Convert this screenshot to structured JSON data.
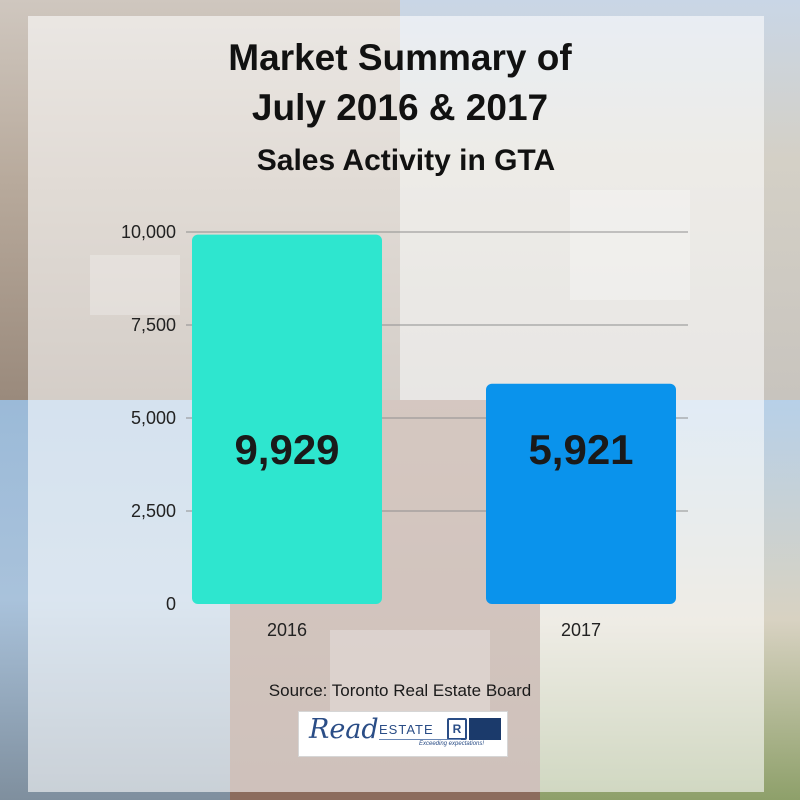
{
  "header": {
    "title_line1": "Market Summary of",
    "title_line2": "July 2016 & 2017",
    "subtitle": "Sales Activity in GTA"
  },
  "chart_data": {
    "type": "bar",
    "title": "Market Summary of July 2016 & 2017",
    "subtitle": "Sales Activity in GTA",
    "categories": [
      "2016",
      "2017"
    ],
    "values": [
      9929,
      5921
    ],
    "value_labels": [
      "9,929",
      "5,921"
    ],
    "bar_colors": [
      "#2ee6cf",
      "#0a93ec"
    ],
    "ylim": [
      0,
      10000
    ],
    "yticks": [
      "0",
      "2,500",
      "5,000",
      "7,500",
      "10,000"
    ],
    "grid": true,
    "xlabel": "",
    "ylabel": ""
  },
  "footer": {
    "source": "Source: Toronto Real Estate Board",
    "logo_text_read": "Read",
    "logo_text_estate": "ESTATE",
    "logo_tagline": "Exceeding expectations!"
  }
}
